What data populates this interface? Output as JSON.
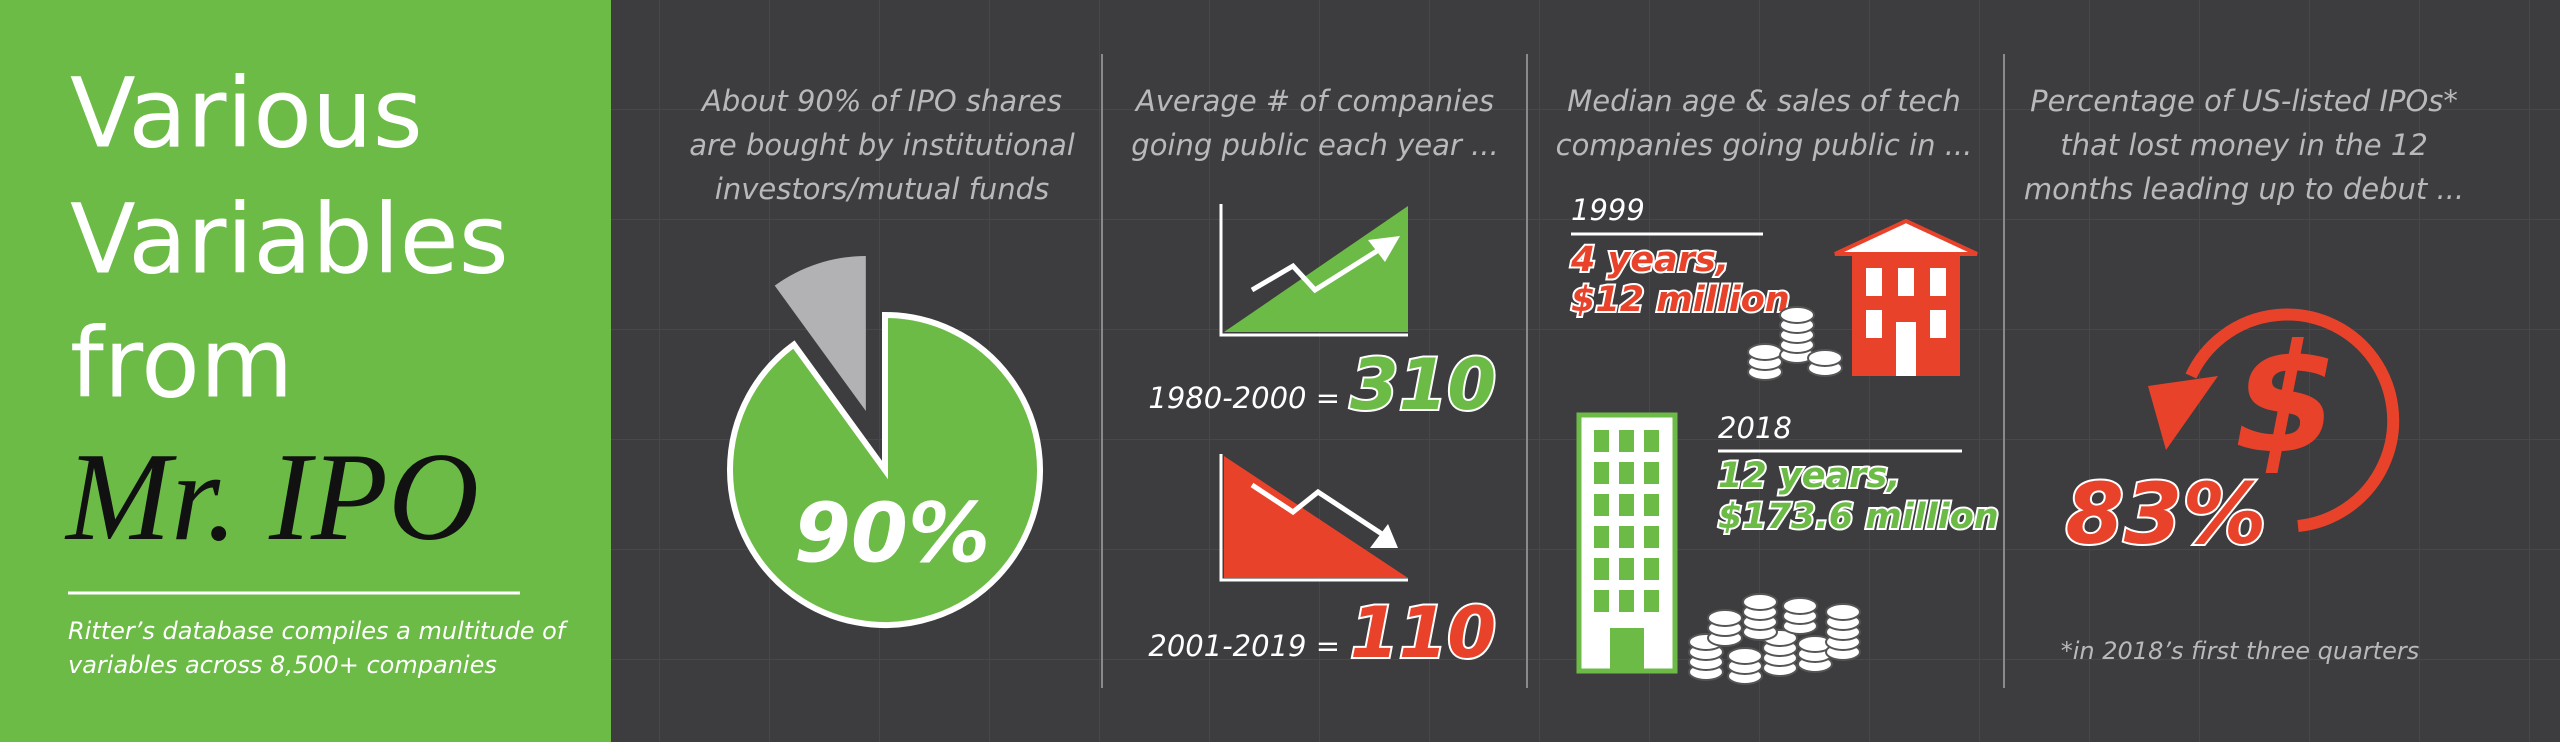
{
  "sidebar": {
    "title_lines": [
      "Various",
      "Variables",
      "from"
    ],
    "title_name": "Mr. IPO",
    "description_lines": [
      "Ritter’s database compiles a multitude of",
      "variables across 8,500+ companies"
    ]
  },
  "panels": [
    {
      "title_lines": [
        "About 90% of IPO shares",
        "are bought by institutional",
        "investors/mutual funds"
      ],
      "value": 90,
      "value_label": "90%"
    },
    {
      "title_lines": [
        "Average # of companies",
        "going public each year ..."
      ],
      "periods": [
        {
          "label": "1980-2000 =",
          "value": "310"
        },
        {
          "label": "2001-2019 =",
          "value": "110"
        }
      ]
    },
    {
      "title_lines": [
        "Median age & sales of tech",
        "companies going public in ..."
      ],
      "years": [
        {
          "year": "1999",
          "age": "4 years,",
          "sales": "$12 million"
        },
        {
          "year": "2018",
          "age": "12 years,",
          "sales": "$173.6 million"
        }
      ]
    },
    {
      "title_lines": [
        "Percentage of US-listed IPOs*",
        "that lost money in the 12",
        "months leading up to debut ..."
      ],
      "value": "83%",
      "footnote": "*in 2018’s first three quarters"
    }
  ]
}
